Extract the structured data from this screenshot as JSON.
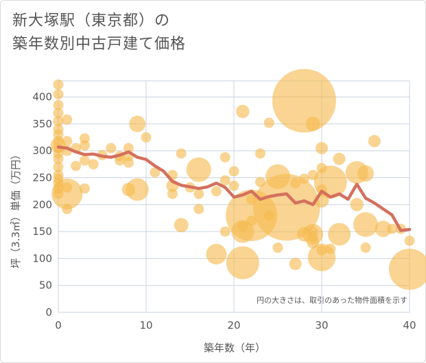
{
  "title_lines": [
    "新大塚駅（東京都）の",
    "築年数別中古戸建て価格"
  ],
  "colors": {
    "bubble": "#f5b94f",
    "line": "#d4705e",
    "grid": "#c9d3e0",
    "text": "#555555"
  },
  "chart_data": {
    "type": "scatter",
    "title": "新大塚駅（東京都）の築年数別中古戸建て価格",
    "xlabel": "築年数（年）",
    "ylabel": "坪（3.3㎡）単価（万円）",
    "xlim": [
      0,
      40
    ],
    "ylim": [
      0,
      430
    ],
    "xticks": [
      0,
      10,
      20,
      30,
      40
    ],
    "yticks": [
      0,
      50,
      100,
      150,
      200,
      250,
      300,
      350,
      400
    ],
    "grid": true,
    "note": "円の大きさは、取引のあった物件面積を示す",
    "points": [
      {
        "x": 0,
        "y": 423,
        "s": 1
      },
      {
        "x": 0,
        "y": 405,
        "s": 1
      },
      {
        "x": 0,
        "y": 385,
        "s": 1
      },
      {
        "x": 0,
        "y": 370,
        "s": 1
      },
      {
        "x": 0,
        "y": 355,
        "s": 1
      },
      {
        "x": 0,
        "y": 340,
        "s": 1
      },
      {
        "x": 0,
        "y": 330,
        "s": 1
      },
      {
        "x": 0,
        "y": 318,
        "s": 1
      },
      {
        "x": 0,
        "y": 305,
        "s": 1
      },
      {
        "x": 0,
        "y": 295,
        "s": 1
      },
      {
        "x": 0,
        "y": 285,
        "s": 1
      },
      {
        "x": 0,
        "y": 270,
        "s": 1
      },
      {
        "x": 0,
        "y": 255,
        "s": 1
      },
      {
        "x": 0,
        "y": 248,
        "s": 1
      },
      {
        "x": 0,
        "y": 240,
        "s": 1
      },
      {
        "x": 0,
        "y": 230,
        "s": 1
      },
      {
        "x": 0,
        "y": 220,
        "s": 1
      },
      {
        "x": 0,
        "y": 310,
        "s": 1.5
      },
      {
        "x": 1,
        "y": 358,
        "s": 1
      },
      {
        "x": 1,
        "y": 318,
        "s": 1
      },
      {
        "x": 1,
        "y": 300,
        "s": 1
      },
      {
        "x": 1,
        "y": 232,
        "s": 1
      },
      {
        "x": 1,
        "y": 220,
        "s": 3
      },
      {
        "x": 1,
        "y": 192,
        "s": 1
      },
      {
        "x": 2,
        "y": 305,
        "s": 1
      },
      {
        "x": 2,
        "y": 272,
        "s": 1
      },
      {
        "x": 3,
        "y": 323,
        "s": 1
      },
      {
        "x": 3,
        "y": 310,
        "s": 1
      },
      {
        "x": 3,
        "y": 282,
        "s": 1
      },
      {
        "x": 3,
        "y": 230,
        "s": 1
      },
      {
        "x": 4,
        "y": 275,
        "s": 1
      },
      {
        "x": 5,
        "y": 292,
        "s": 1
      },
      {
        "x": 6,
        "y": 305,
        "s": 1
      },
      {
        "x": 7,
        "y": 290,
        "s": 1
      },
      {
        "x": 7,
        "y": 282,
        "s": 1
      },
      {
        "x": 8,
        "y": 305,
        "s": 1
      },
      {
        "x": 8,
        "y": 290,
        "s": 1
      },
      {
        "x": 8,
        "y": 278,
        "s": 1
      },
      {
        "x": 8,
        "y": 228,
        "s": 1.3
      },
      {
        "x": 9,
        "y": 350,
        "s": 1.6
      },
      {
        "x": 9,
        "y": 228,
        "s": 2.2
      },
      {
        "x": 10,
        "y": 325,
        "s": 1
      },
      {
        "x": 11,
        "y": 260,
        "s": 1
      },
      {
        "x": 13,
        "y": 255,
        "s": 1
      },
      {
        "x": 13,
        "y": 235,
        "s": 1.2
      },
      {
        "x": 13,
        "y": 220,
        "s": 1
      },
      {
        "x": 14,
        "y": 295,
        "s": 1
      },
      {
        "x": 14,
        "y": 162,
        "s": 1.4
      },
      {
        "x": 15,
        "y": 232,
        "s": 1
      },
      {
        "x": 16,
        "y": 265,
        "s": 2.4
      },
      {
        "x": 16,
        "y": 220,
        "s": 1
      },
      {
        "x": 16,
        "y": 192,
        "s": 1
      },
      {
        "x": 18,
        "y": 225,
        "s": 1
      },
      {
        "x": 18,
        "y": 108,
        "s": 2
      },
      {
        "x": 19,
        "y": 288,
        "s": 1
      },
      {
        "x": 19,
        "y": 245,
        "s": 1
      },
      {
        "x": 19,
        "y": 150,
        "s": 1
      },
      {
        "x": 20,
        "y": 262,
        "s": 1
      },
      {
        "x": 20,
        "y": 235,
        "s": 1
      },
      {
        "x": 21,
        "y": 373,
        "s": 1.3
      },
      {
        "x": 21,
        "y": 150,
        "s": 2.2
      },
      {
        "x": 21,
        "y": 92,
        "s": 3.2
      },
      {
        "x": 21,
        "y": 160,
        "s": 1
      },
      {
        "x": 22,
        "y": 180,
        "s": 5
      },
      {
        "x": 22,
        "y": 210,
        "s": 1
      },
      {
        "x": 22,
        "y": 170,
        "s": 1
      },
      {
        "x": 23,
        "y": 295,
        "s": 1
      },
      {
        "x": 23,
        "y": 242,
        "s": 1
      },
      {
        "x": 24,
        "y": 352,
        "s": 1
      },
      {
        "x": 24,
        "y": 180,
        "s": 1
      },
      {
        "x": 25,
        "y": 252,
        "s": 2.4
      },
      {
        "x": 25,
        "y": 120,
        "s": 1
      },
      {
        "x": 26,
        "y": 195,
        "s": 6.5
      },
      {
        "x": 27,
        "y": 240,
        "s": 1
      },
      {
        "x": 27,
        "y": 90,
        "s": 1.2
      },
      {
        "x": 28,
        "y": 393,
        "s": 6.2
      },
      {
        "x": 28,
        "y": 248,
        "s": 1
      },
      {
        "x": 28,
        "y": 145,
        "s": 1.4
      },
      {
        "x": 29,
        "y": 350,
        "s": 1.4
      },
      {
        "x": 29,
        "y": 255,
        "s": 1
      },
      {
        "x": 29,
        "y": 150,
        "s": 1
      },
      {
        "x": 29,
        "y": 140,
        "s": 1
      },
      {
        "x": 29,
        "y": 130,
        "s": 1.2
      },
      {
        "x": 29,
        "y": 145,
        "s": 2
      },
      {
        "x": 30,
        "y": 305,
        "s": 1.2
      },
      {
        "x": 30,
        "y": 268,
        "s": 1
      },
      {
        "x": 30,
        "y": 228,
        "s": 1
      },
      {
        "x": 30,
        "y": 208,
        "s": 1.4
      },
      {
        "x": 30,
        "y": 102,
        "s": 2.7
      },
      {
        "x": 30,
        "y": 115,
        "s": 1
      },
      {
        "x": 31,
        "y": 242,
        "s": 3.2
      },
      {
        "x": 31,
        "y": 118,
        "s": 1
      },
      {
        "x": 32,
        "y": 285,
        "s": 1.2
      },
      {
        "x": 32,
        "y": 145,
        "s": 2.2
      },
      {
        "x": 34,
        "y": 260,
        "s": 2.2
      },
      {
        "x": 34,
        "y": 200,
        "s": 1.3
      },
      {
        "x": 35,
        "y": 258,
        "s": 1.6
      },
      {
        "x": 35,
        "y": 163,
        "s": 2.4
      },
      {
        "x": 35,
        "y": 120,
        "s": 1
      },
      {
        "x": 36,
        "y": 318,
        "s": 1.2
      },
      {
        "x": 37,
        "y": 155,
        "s": 1.6
      },
      {
        "x": 38,
        "y": 155,
        "s": 1
      },
      {
        "x": 39,
        "y": 155,
        "s": 1
      },
      {
        "x": 40,
        "y": 133,
        "s": 1
      },
      {
        "x": 40,
        "y": 80,
        "s": 4
      }
    ],
    "trend": {
      "x": [
        0,
        1,
        2,
        3,
        4,
        5,
        6,
        7,
        8,
        9,
        10,
        11,
        12,
        13,
        14,
        15,
        16,
        17,
        18,
        19,
        20,
        21,
        22,
        23,
        24,
        25,
        26,
        27,
        28,
        29,
        30,
        31,
        32,
        33,
        34,
        35,
        36,
        37,
        38,
        39,
        40
      ],
      "y": [
        307,
        305,
        298,
        293,
        294,
        290,
        288,
        292,
        298,
        288,
        284,
        272,
        262,
        243,
        236,
        233,
        230,
        233,
        240,
        232,
        214,
        218,
        225,
        210,
        215,
        218,
        220,
        203,
        207,
        200,
        225,
        214,
        220,
        210,
        238,
        212,
        203,
        192,
        181,
        152,
        154
      ]
    }
  }
}
